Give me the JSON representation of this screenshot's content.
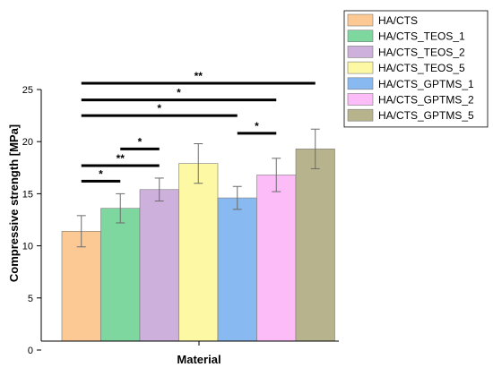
{
  "chart_data": {
    "type": "bar",
    "xlabel": "Material",
    "ylabel": "Compressive strength [MPa]",
    "ylim": [
      0,
      25
    ],
    "yticks": [
      0,
      5,
      10,
      15,
      20,
      25
    ],
    "grid": false,
    "legend_position": "top-right",
    "series": [
      {
        "name": "HA/CTS",
        "value": 11.4,
        "error": 1.5,
        "color": "#fcc995"
      },
      {
        "name": "HA/CTS_TEOS_1",
        "value": 13.6,
        "error": 1.4,
        "color": "#7dd79f"
      },
      {
        "name": "HA/CTS_TEOS_2",
        "value": 15.4,
        "error": 1.1,
        "color": "#cdb1dc"
      },
      {
        "name": "HA/CTS_TEOS_5",
        "value": 17.9,
        "error": 1.9,
        "color": "#fdf8a4"
      },
      {
        "name": "HA/CTS_GPTMS_1",
        "value": 14.6,
        "error": 1.1,
        "color": "#88b9f0"
      },
      {
        "name": "HA/CTS_GPTMS_2",
        "value": 16.8,
        "error": 1.6,
        "color": "#fbbcf7"
      },
      {
        "name": "HA/CTS_GPTMS_5",
        "value": 19.3,
        "error": 1.9,
        "color": "#b6b38d"
      }
    ],
    "significance": [
      {
        "from": 0,
        "to": 1,
        "y": 16.2,
        "label": "*"
      },
      {
        "from": 0,
        "to": 2,
        "y": 17.7,
        "label": "**"
      },
      {
        "from": 1,
        "to": 2,
        "y": 19.3,
        "label": "*"
      },
      {
        "from": 0,
        "to": 4,
        "y": 22.5,
        "label": "*"
      },
      {
        "from": 0,
        "to": 5,
        "y": 24.0,
        "label": "*"
      },
      {
        "from": 0,
        "to": 6,
        "y": 25.6,
        "label": "**"
      },
      {
        "from": 4,
        "to": 5,
        "y": 20.8,
        "label": "*"
      }
    ]
  }
}
